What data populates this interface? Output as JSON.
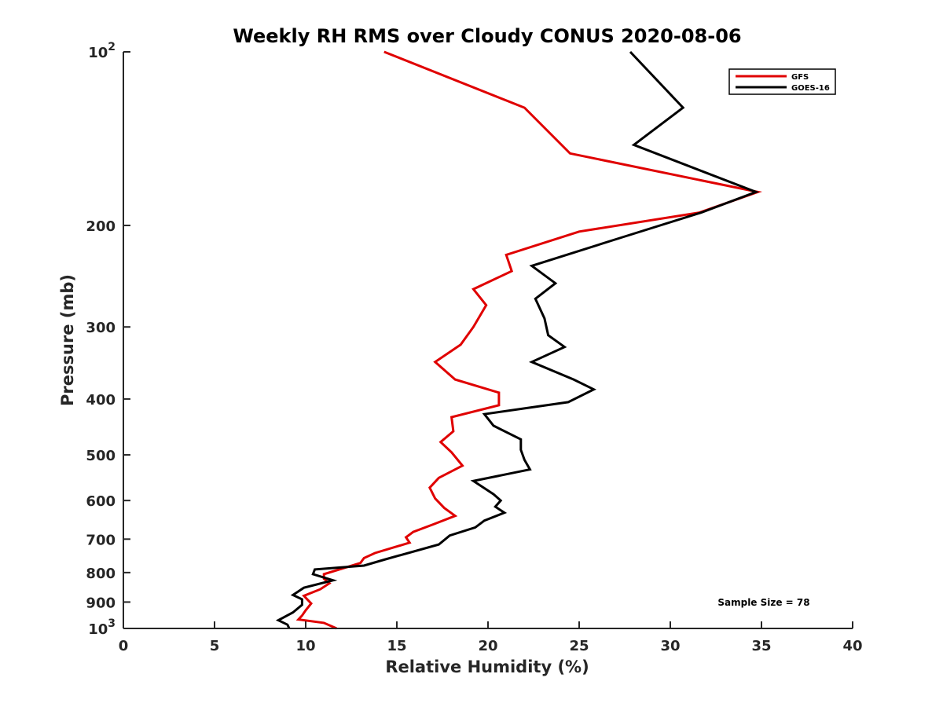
{
  "chart_data": {
    "type": "line",
    "title": "Weekly RH RMS over Cloudy CONUS 2020-08-06",
    "xlabel": "Relative Humidity (%)",
    "ylabel": "Pressure (mb)",
    "xlim": [
      0,
      40
    ],
    "ylim": [
      100,
      1000
    ],
    "y_scale": "log",
    "y_reversed": true,
    "x_ticks": [
      0,
      5,
      10,
      15,
      20,
      25,
      30,
      35,
      40
    ],
    "y_ticks": [
      {
        "value": 100,
        "base": "10",
        "exp": "2"
      },
      {
        "value": 200,
        "label": "200"
      },
      {
        "value": 300,
        "label": "300"
      },
      {
        "value": 400,
        "label": "400"
      },
      {
        "value": 500,
        "label": "500"
      },
      {
        "value": 600,
        "label": "600"
      },
      {
        "value": 700,
        "label": "700"
      },
      {
        "value": 800,
        "label": "800"
      },
      {
        "value": 900,
        "label": "900"
      },
      {
        "value": 1000,
        "base": "10",
        "exp": "3"
      }
    ],
    "grid": false,
    "legend_position": "top-right",
    "annotation": "Sample Size = 78",
    "series": [
      {
        "name": "GFS",
        "color": "#e00000",
        "points": [
          [
            14.3,
            100
          ],
          [
            22.0,
            125
          ],
          [
            24.5,
            150
          ],
          [
            34.8,
            175
          ],
          [
            31.6,
            190
          ],
          [
            25.0,
            205
          ],
          [
            21.0,
            225
          ],
          [
            21.3,
            240
          ],
          [
            19.2,
            258
          ],
          [
            19.9,
            275
          ],
          [
            19.2,
            300
          ],
          [
            18.5,
            322
          ],
          [
            17.1,
            345
          ],
          [
            18.2,
            370
          ],
          [
            20.6,
            390
          ],
          [
            20.6,
            410
          ],
          [
            18.0,
            430
          ],
          [
            18.1,
            455
          ],
          [
            17.4,
            475
          ],
          [
            18.0,
            495
          ],
          [
            18.6,
            522
          ],
          [
            17.3,
            548
          ],
          [
            16.8,
            570
          ],
          [
            17.1,
            595
          ],
          [
            17.6,
            618
          ],
          [
            18.2,
            638
          ],
          [
            17.0,
            660
          ],
          [
            15.9,
            680
          ],
          [
            15.5,
            695
          ],
          [
            15.7,
            710
          ],
          [
            13.8,
            740
          ],
          [
            13.2,
            755
          ],
          [
            13.0,
            770
          ],
          [
            11.0,
            805
          ],
          [
            11.0,
            820
          ],
          [
            11.3,
            835
          ],
          [
            10.8,
            855
          ],
          [
            9.9,
            878
          ],
          [
            10.3,
            905
          ],
          [
            10.0,
            930
          ],
          [
            9.8,
            950
          ],
          [
            9.6,
            965
          ],
          [
            11.0,
            978
          ],
          [
            11.7,
            1000
          ]
        ]
      },
      {
        "name": "GOES-16",
        "color": "#000000",
        "points": [
          [
            27.8,
            100
          ],
          [
            30.7,
            125
          ],
          [
            28.0,
            145
          ],
          [
            34.7,
            175
          ],
          [
            31.7,
            190
          ],
          [
            27.3,
            210
          ],
          [
            22.4,
            235
          ],
          [
            23.7,
            252
          ],
          [
            22.6,
            268
          ],
          [
            23.1,
            290
          ],
          [
            23.3,
            310
          ],
          [
            24.2,
            325
          ],
          [
            22.4,
            345
          ],
          [
            24.7,
            370
          ],
          [
            25.8,
            385
          ],
          [
            24.4,
            405
          ],
          [
            19.8,
            425
          ],
          [
            20.3,
            445
          ],
          [
            21.8,
            470
          ],
          [
            21.8,
            490
          ],
          [
            22.0,
            510
          ],
          [
            22.3,
            530
          ],
          [
            19.2,
            555
          ],
          [
            20.3,
            585
          ],
          [
            20.7,
            600
          ],
          [
            20.4,
            615
          ],
          [
            20.9,
            630
          ],
          [
            19.8,
            650
          ],
          [
            19.3,
            668
          ],
          [
            17.9,
            690
          ],
          [
            17.3,
            715
          ],
          [
            14.3,
            760
          ],
          [
            13.2,
            778
          ],
          [
            10.5,
            790
          ],
          [
            10.4,
            805
          ],
          [
            11.5,
            825
          ],
          [
            9.9,
            850
          ],
          [
            9.3,
            875
          ],
          [
            9.8,
            890
          ],
          [
            9.8,
            910
          ],
          [
            9.3,
            938
          ],
          [
            8.5,
            968
          ],
          [
            9.0,
            985
          ],
          [
            9.1,
            1000
          ]
        ]
      }
    ]
  }
}
